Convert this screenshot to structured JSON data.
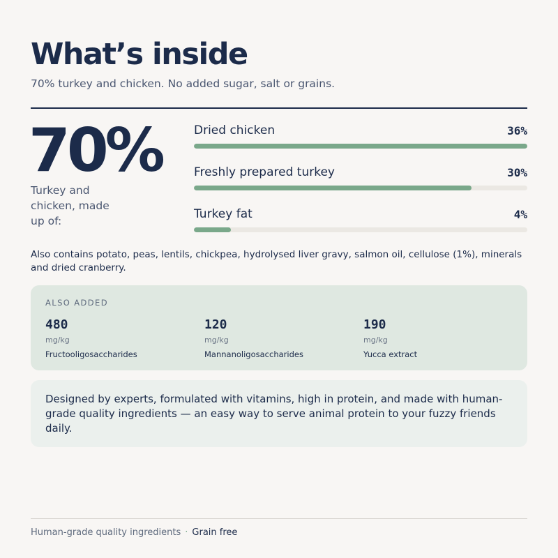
{
  "header": {
    "title": "What’s inside",
    "subtitle": "70% turkey and chicken. No added sugar, salt or grains."
  },
  "summary": {
    "percent": "70%",
    "caption": "Turkey and chicken, made up of:"
  },
  "ingredients": [
    {
      "label": "Dried chicken",
      "value_text": "36%",
      "fraction": 1.0
    },
    {
      "label": "Freshly prepared turkey",
      "value_text": "30%",
      "fraction": 0.833
    },
    {
      "label": "Turkey fat",
      "value_text": "4%",
      "fraction": 0.111
    }
  ],
  "bar_colors": {
    "fill": "#7aa88a",
    "track": "#ebe8e3"
  },
  "also_contains": "Also contains potato, peas, lentils, chickpea, hydrolysed liver gravy, salmon oil, cellulose (1%), minerals and dried cranberry.",
  "also_added": {
    "title": "ALSO ADDED",
    "items": [
      {
        "amount": "480",
        "unit": "mg/kg",
        "name": "Fructooligosaccharides"
      },
      {
        "amount": "120",
        "unit": "mg/kg",
        "name": "Mannanoligosaccharides"
      },
      {
        "amount": "190",
        "unit": "mg/kg",
        "name": "Yucca extract"
      }
    ]
  },
  "info": {
    "text": "Designed by experts, formulated with vitamins, high in protein, and made with human-grade quality ingredients — an easy way to serve animal protein to your fuzzy friends daily."
  },
  "footer": {
    "left": "Human-grade quality ingredients",
    "separator": "·",
    "right": "Grain free"
  }
}
